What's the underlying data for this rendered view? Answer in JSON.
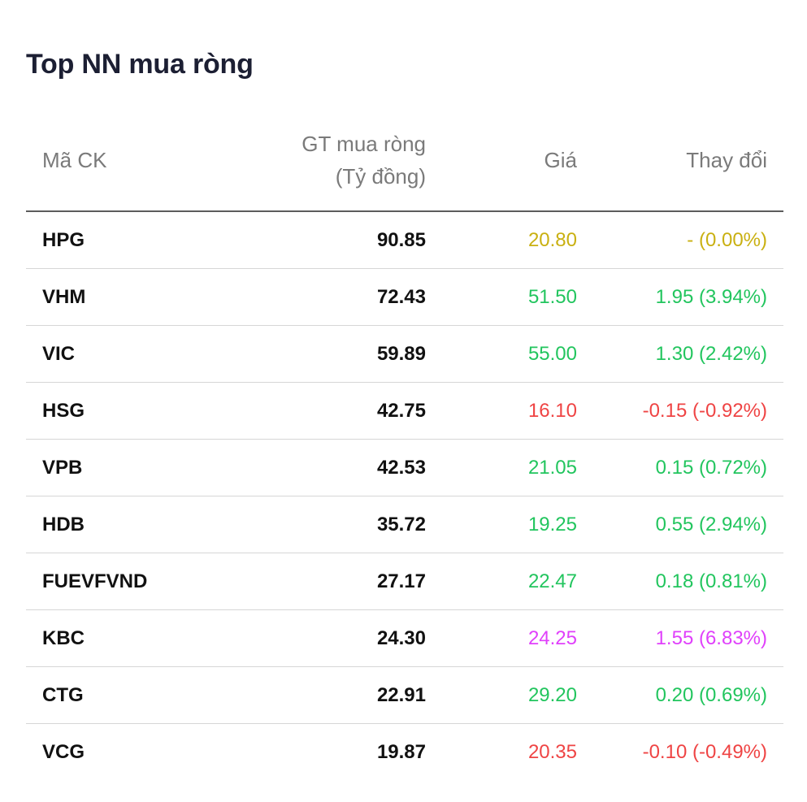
{
  "title": "Top NN mua ròng",
  "columns": {
    "code": "Mã CK",
    "value_line1": "GT mua ròng",
    "value_line2": "(Tỷ đồng)",
    "price": "Giá",
    "change": "Thay đổi"
  },
  "colors": {
    "up": "#22c55e",
    "down": "#ef4444",
    "ref": "#c9b011",
    "ceiling": "#e040fb"
  },
  "rows": [
    {
      "code": "HPG",
      "value": "90.85",
      "price": "20.80",
      "change": "- (0.00%)",
      "status": "ref"
    },
    {
      "code": "VHM",
      "value": "72.43",
      "price": "51.50",
      "change": "1.95 (3.94%)",
      "status": "up"
    },
    {
      "code": "VIC",
      "value": "59.89",
      "price": "55.00",
      "change": "1.30 (2.42%)",
      "status": "up"
    },
    {
      "code": "HSG",
      "value": "42.75",
      "price": "16.10",
      "change": "-0.15 (-0.92%)",
      "status": "down"
    },
    {
      "code": "VPB",
      "value": "42.53",
      "price": "21.05",
      "change": "0.15 (0.72%)",
      "status": "up"
    },
    {
      "code": "HDB",
      "value": "35.72",
      "price": "19.25",
      "change": "0.55 (2.94%)",
      "status": "up"
    },
    {
      "code": "FUEVFVND",
      "value": "27.17",
      "price": "22.47",
      "change": "0.18 (0.81%)",
      "status": "up"
    },
    {
      "code": "KBC",
      "value": "24.30",
      "price": "24.25",
      "change": "1.55 (6.83%)",
      "status": "ceiling"
    },
    {
      "code": "CTG",
      "value": "22.91",
      "price": "29.20",
      "change": "0.20 (0.69%)",
      "status": "up"
    },
    {
      "code": "VCG",
      "value": "19.87",
      "price": "20.35",
      "change": "-0.10 (-0.49%)",
      "status": "down"
    }
  ]
}
